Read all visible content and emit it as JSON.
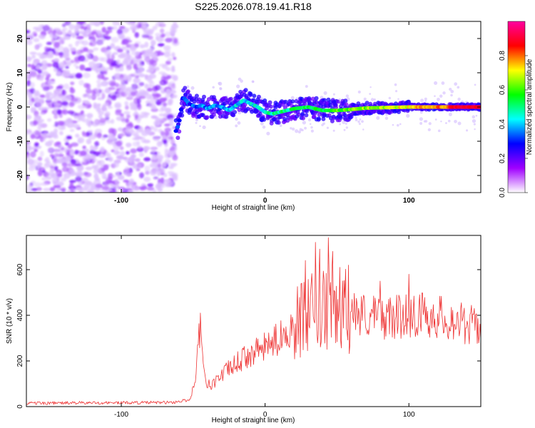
{
  "title": "S225.2026.078.19.41.R18",
  "chart_data": [
    {
      "type": "heatmap",
      "name": "spectrogram",
      "xlabel": "Height of straight line (km)",
      "ylabel": "Frequency (Hz)",
      "xlim": [
        -166,
        150
      ],
      "ylim": [
        -25,
        25
      ],
      "xticks": [
        -100,
        0,
        100
      ],
      "yticks": [
        -20,
        -10,
        0,
        10,
        20
      ],
      "colorbar": {
        "label": "Normalized spectral amplitude",
        "range": [
          0,
          1
        ],
        "ticks": [
          "0.0",
          "0.2",
          "0.4",
          "0.6",
          "0.8"
        ],
        "stops": [
          "#ffffff",
          "#a000ff",
          "#0000ff",
          "#00ffff",
          "#00ff00",
          "#ffff00",
          "#ff0000",
          "#ff00a0"
        ]
      },
      "features": {
        "noise_region_km": [
          -166,
          -62
        ],
        "onset_km": -62,
        "signal_track_hz": [
          [
            -63,
            -8
          ],
          [
            -60,
            -5
          ],
          [
            -57,
            3
          ],
          [
            -53,
            1
          ],
          [
            -48,
            0
          ],
          [
            -44,
            0.5
          ],
          [
            -40,
            -0.5
          ],
          [
            -35,
            0.5
          ],
          [
            -30,
            0
          ],
          [
            -25,
            -1
          ],
          [
            -20,
            0.5
          ],
          [
            -15,
            2
          ],
          [
            -10,
            1
          ],
          [
            -5,
            0
          ],
          [
            0,
            -1.5
          ],
          [
            5,
            -2
          ],
          [
            10,
            -1.5
          ],
          [
            15,
            -1
          ],
          [
            20,
            -0.5
          ],
          [
            30,
            0
          ],
          [
            40,
            -1
          ],
          [
            50,
            -1
          ],
          [
            60,
            -0.7
          ],
          [
            70,
            -0.3
          ],
          [
            80,
            -0.2
          ],
          [
            100,
            0
          ],
          [
            120,
            0
          ],
          [
            140,
            0
          ],
          [
            150,
            0
          ]
        ]
      }
    },
    {
      "type": "line",
      "name": "snr",
      "xlabel": "Height of straight line (km)",
      "ylabel": "SNR (10 * v/v)",
      "xlim": [
        -166,
        150
      ],
      "ylim": [
        0,
        750
      ],
      "xticks": [
        -100,
        0,
        100
      ],
      "yticks": [
        0,
        200,
        400,
        600
      ],
      "color": "#ee3333",
      "envelope": [
        [
          -166,
          15
        ],
        [
          -65,
          18
        ],
        [
          -52,
          30
        ],
        [
          -48,
          150
        ],
        [
          -45,
          380
        ],
        [
          -42,
          120
        ],
        [
          -38,
          90
        ],
        [
          -30,
          140
        ],
        [
          -20,
          190
        ],
        [
          -10,
          230
        ],
        [
          0,
          260
        ],
        [
          10,
          300
        ],
        [
          20,
          360
        ],
        [
          30,
          400
        ],
        [
          40,
          410
        ],
        [
          50,
          430
        ],
        [
          60,
          420
        ],
        [
          70,
          400
        ],
        [
          80,
          390
        ],
        [
          90,
          390
        ],
        [
          100,
          400
        ],
        [
          110,
          405
        ],
        [
          120,
          395
        ],
        [
          130,
          380
        ],
        [
          140,
          360
        ],
        [
          150,
          350
        ]
      ],
      "peaks": [
        [
          -45,
          410
        ],
        [
          28,
          640
        ],
        [
          35,
          720
        ],
        [
          38,
          690
        ],
        [
          44,
          740
        ],
        [
          47,
          680
        ],
        [
          52,
          610
        ],
        [
          58,
          620
        ],
        [
          80,
          550
        ],
        [
          100,
          580
        ]
      ]
    }
  ]
}
